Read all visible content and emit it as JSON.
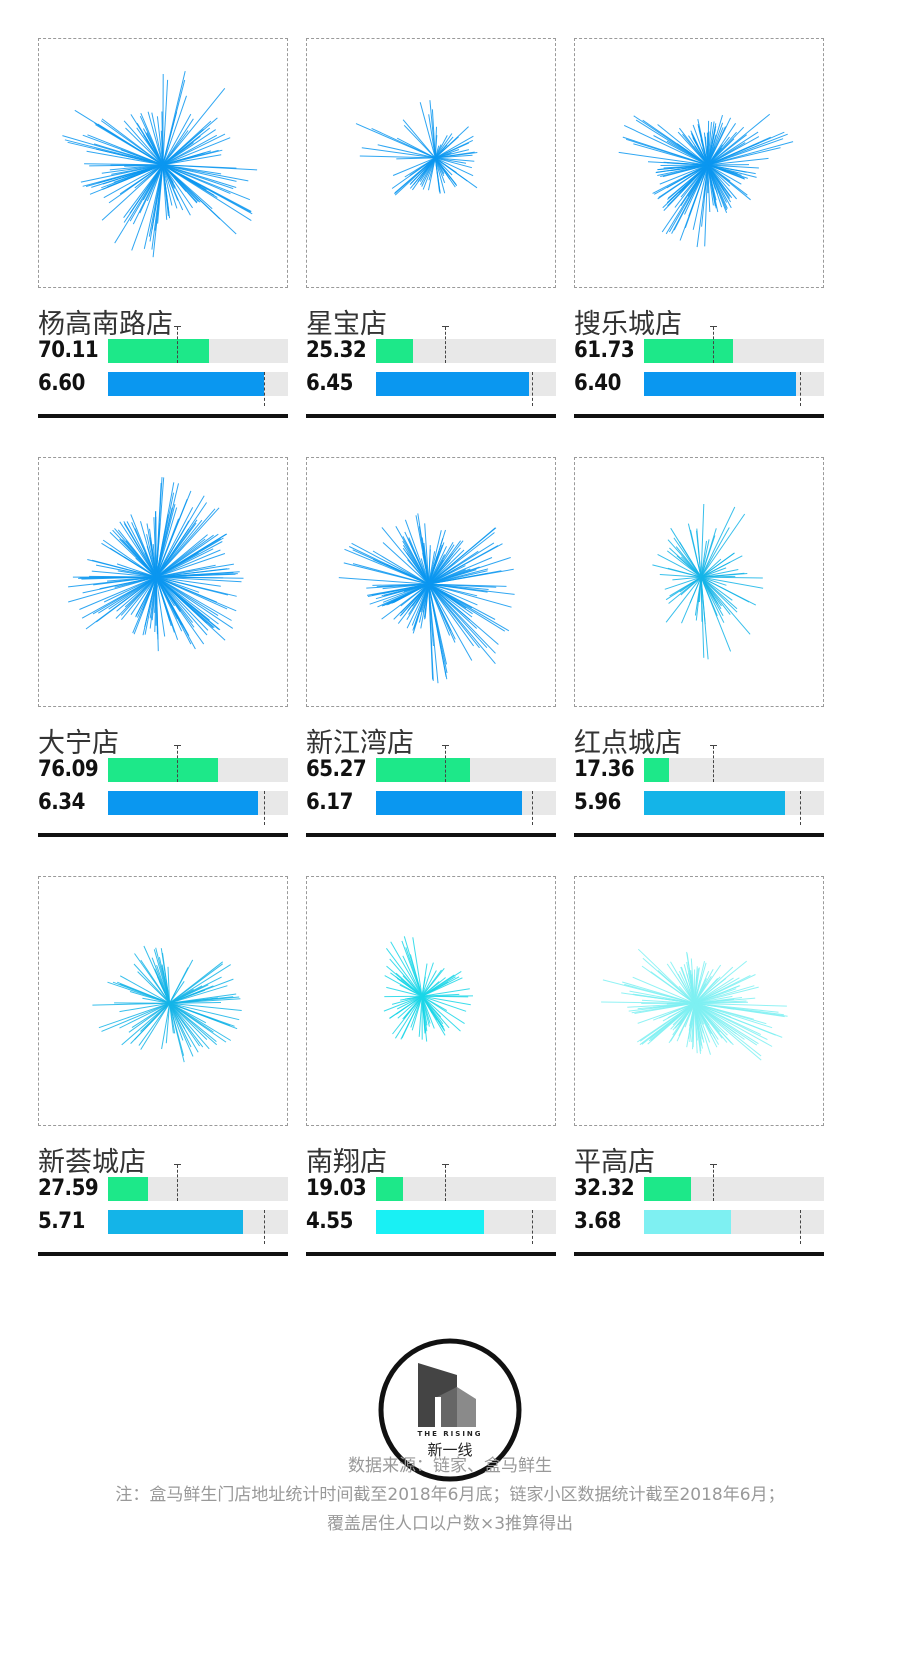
{
  "chart_data": {
    "type": "bar",
    "stores": [
      {
        "name": "杨高南路店",
        "population": "70.11",
        "price": "6.60",
        "population_value": 70.11,
        "price_value": 6.6,
        "color": "#0a97f0",
        "density": 140,
        "shape": [
          1.0,
          0.55,
          0.9,
          0.8,
          1.0,
          0.6,
          0.95,
          0.7
        ]
      },
      {
        "name": "星宝店",
        "population": "25.32",
        "price": "6.45",
        "population_value": 25.32,
        "price_value": 6.45,
        "color": "#0a97f0",
        "density": 70,
        "shape": [
          0.5,
          0.35,
          0.4,
          0.55,
          1.0,
          0.6,
          0.3,
          0.45
        ]
      },
      {
        "name": "搜乐城店",
        "population": "61.73",
        "price": "6.40",
        "population_value": 61.73,
        "price_value": 6.4,
        "color": "#0a97f0",
        "density": 150,
        "shape": [
          0.55,
          0.5,
          0.8,
          0.6,
          0.9,
          0.45,
          0.5,
          0.85
        ]
      },
      {
        "name": "大宁店",
        "population": "76.09",
        "price": "6.34",
        "population_value": 76.09,
        "price_value": 6.34,
        "color": "#0a97f0",
        "density": 170,
        "shape": [
          0.95,
          0.8,
          0.6,
          0.9,
          0.7,
          0.65,
          1.0,
          0.8
        ]
      },
      {
        "name": "新江湾店",
        "population": "65.27",
        "price": "6.17",
        "population_value": 65.27,
        "price_value": 6.17,
        "color": "#0a97f0",
        "density": 160,
        "shape": [
          0.9,
          1.0,
          0.5,
          0.6,
          0.9,
          0.7,
          0.55,
          0.85
        ]
      },
      {
        "name": "红点城店",
        "population": "17.36",
        "price": "5.96",
        "population_value": 17.36,
        "price_value": 5.96,
        "color": "#14b4e8",
        "density": 70,
        "shape": [
          0.6,
          0.8,
          0.55,
          0.4,
          0.5,
          0.55,
          0.75,
          0.45
        ]
      },
      {
        "name": "新荟城店",
        "population": "27.59",
        "price": "5.71",
        "population_value": 27.59,
        "price_value": 5.71,
        "color": "#14b4e8",
        "density": 90,
        "shape": [
          0.7,
          0.6,
          0.55,
          0.75,
          0.65,
          0.6,
          0.5,
          0.7
        ]
      },
      {
        "name": "南翔店",
        "population": "19.03",
        "price": "4.55",
        "population_value": 19.03,
        "price_value": 4.55,
        "color": "#1ad6e8",
        "density": 80,
        "shape": [
          0.55,
          0.45,
          0.5,
          0.4,
          0.45,
          0.6,
          0.4,
          0.5
        ]
      },
      {
        "name": "平高店",
        "population": "32.32",
        "price": "3.68",
        "population_value": 32.32,
        "price_value": 3.68,
        "color": "#7ef0f2",
        "density": 160,
        "shape": [
          0.9,
          0.55,
          0.45,
          0.7,
          0.95,
          0.5,
          0.45,
          0.65
        ]
      }
    ],
    "population_axis_max": 125,
    "population_average": 47.8,
    "price_axis_max": 7.6,
    "price_average": 6.6,
    "colors": {
      "population_bar": "#1de889",
      "track": "#e8e8e8",
      "baseline": "#111111"
    }
  },
  "logo": {
    "text_en": "THE RISING",
    "text_cn": "新一线"
  },
  "footer": {
    "line1": "数据来源：链家、盒马鲜生",
    "line2": "注：盒马鲜生门店地址统计时间截至2018年6月底；链家小区数据统计截至2018年6月；",
    "line3": "覆盖居住人口以户数×3推算得出"
  }
}
